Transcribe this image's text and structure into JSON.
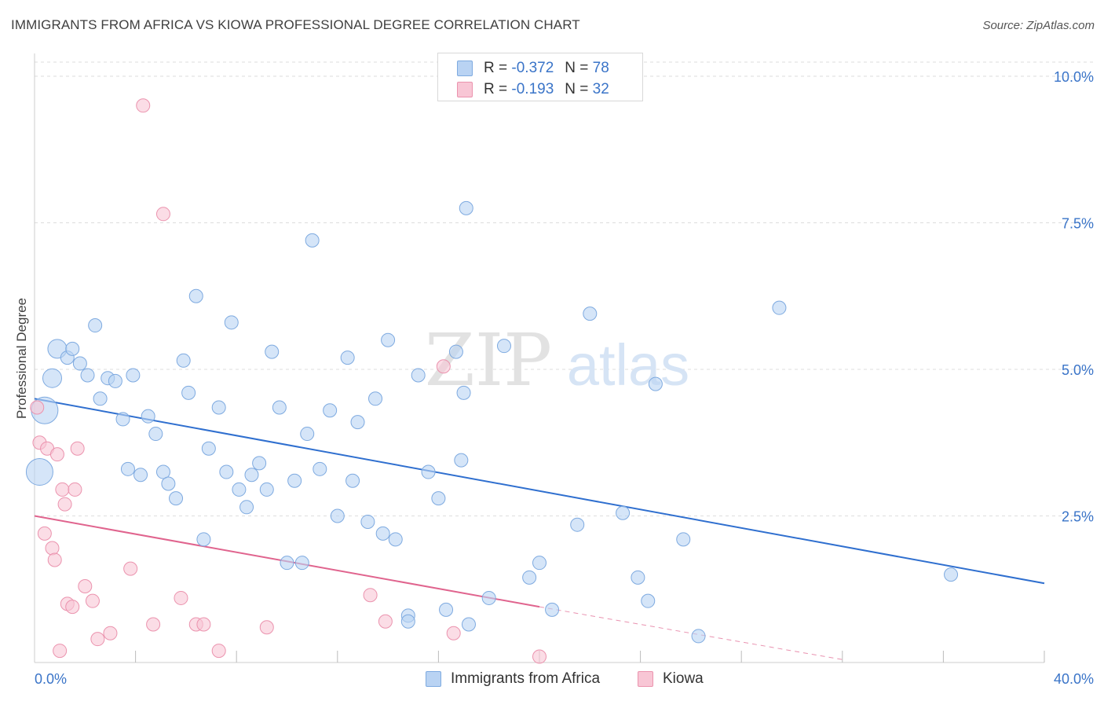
{
  "header": {
    "title": "IMMIGRANTS FROM AFRICA VS KIOWA PROFESSIONAL DEGREE CORRELATION CHART",
    "source": "Source: ZipAtlas.com"
  },
  "legend": {
    "rows": [
      {
        "r_label": "R =",
        "r_value": "-0.372",
        "n_label": "N =",
        "n_value": "78"
      },
      {
        "r_label": "R =",
        "r_value": "-0.193",
        "n_label": "N =",
        "n_value": "32"
      }
    ]
  },
  "bottom_legend": {
    "items": [
      {
        "label": "Immigrants from Africa"
      },
      {
        "label": "Kiowa"
      }
    ]
  },
  "watermark": {
    "zip": "ZIP",
    "atlas": "atlas"
  },
  "colors": {
    "blue_fill": "#b9d3f3",
    "blue_stroke": "#7eaae0",
    "blue_line": "#2f6fcf",
    "pink_fill": "#f8c6d5",
    "pink_stroke": "#eb93ae",
    "pink_line": "#e0648e",
    "tick_text": "#3a74c8",
    "grid": "#dddddd"
  },
  "chart_data": {
    "type": "scatter",
    "title": "IMMIGRANTS FROM AFRICA VS KIOWA PROFESSIONAL DEGREE CORRELATION CHART",
    "xlabel": "",
    "ylabel": "Professional Degree",
    "xlim": [
      0,
      40
    ],
    "ylim": [
      0,
      10.5
    ],
    "x_tick_labels": [
      "0.0%",
      "40.0%"
    ],
    "y_ticks": [
      2.5,
      5.0,
      7.5,
      10.0
    ],
    "y_tick_labels": [
      "2.5%",
      "5.0%",
      "7.5%",
      "10.0%"
    ],
    "grid": true,
    "legend_position": "top-center",
    "series": [
      {
        "name": "Immigrants from Africa",
        "r": -0.372,
        "n": 78,
        "trend": {
          "x": [
            0,
            40
          ],
          "y": [
            4.5,
            1.35
          ]
        },
        "points": [
          [
            0.2,
            3.25,
            3
          ],
          [
            0.4,
            4.3,
            3
          ],
          [
            0.7,
            4.85,
            2
          ],
          [
            0.9,
            5.35,
            2
          ],
          [
            1.3,
            5.2,
            1
          ],
          [
            1.5,
            5.35,
            1
          ],
          [
            1.8,
            5.1,
            1
          ],
          [
            2.1,
            4.9,
            1
          ],
          [
            2.4,
            5.75,
            1
          ],
          [
            2.6,
            4.5,
            1
          ],
          [
            2.9,
            4.85,
            1
          ],
          [
            3.2,
            4.8,
            1
          ],
          [
            3.5,
            4.15,
            1
          ],
          [
            3.7,
            3.3,
            1
          ],
          [
            3.9,
            4.9,
            1
          ],
          [
            4.2,
            3.2,
            1
          ],
          [
            4.5,
            4.2,
            1
          ],
          [
            4.8,
            3.9,
            1
          ],
          [
            5.1,
            3.25,
            1
          ],
          [
            5.3,
            3.05,
            1
          ],
          [
            5.6,
            2.8,
            1
          ],
          [
            5.9,
            5.15,
            1
          ],
          [
            6.1,
            4.6,
            1
          ],
          [
            6.4,
            6.25,
            1
          ],
          [
            6.7,
            2.1,
            1
          ],
          [
            6.9,
            3.65,
            1
          ],
          [
            7.3,
            4.35,
            1
          ],
          [
            7.6,
            3.25,
            1
          ],
          [
            7.8,
            5.8,
            1
          ],
          [
            8.1,
            2.95,
            1
          ],
          [
            8.4,
            2.65,
            1
          ],
          [
            8.6,
            3.2,
            1
          ],
          [
            8.9,
            3.4,
            1
          ],
          [
            9.2,
            2.95,
            1
          ],
          [
            9.4,
            5.3,
            1
          ],
          [
            9.7,
            4.35,
            1
          ],
          [
            10.0,
            1.7,
            1
          ],
          [
            10.3,
            3.1,
            1
          ],
          [
            10.6,
            1.7,
            1
          ],
          [
            10.8,
            3.9,
            1
          ],
          [
            11.0,
            7.2,
            1
          ],
          [
            11.3,
            3.3,
            1
          ],
          [
            11.7,
            4.3,
            1
          ],
          [
            12.0,
            2.5,
            1
          ],
          [
            12.4,
            5.2,
            1
          ],
          [
            12.6,
            3.1,
            1
          ],
          [
            12.8,
            4.1,
            1
          ],
          [
            13.2,
            2.4,
            1
          ],
          [
            13.5,
            4.5,
            1
          ],
          [
            13.8,
            2.2,
            1
          ],
          [
            14.0,
            5.5,
            1
          ],
          [
            14.3,
            2.1,
            1
          ],
          [
            14.8,
            0.8,
            1
          ],
          [
            14.8,
            0.7,
            1
          ],
          [
            15.2,
            4.9,
            1
          ],
          [
            15.6,
            3.25,
            1
          ],
          [
            16.0,
            2.8,
            1
          ],
          [
            16.3,
            0.9,
            1
          ],
          [
            16.7,
            5.3,
            1
          ],
          [
            16.9,
            3.45,
            1
          ],
          [
            17.0,
            4.6,
            1
          ],
          [
            17.1,
            7.75,
            1
          ],
          [
            17.2,
            0.65,
            1
          ],
          [
            18.0,
            1.1,
            1
          ],
          [
            18.6,
            5.4,
            1
          ],
          [
            19.6,
            1.45,
            1
          ],
          [
            20.0,
            1.7,
            1
          ],
          [
            20.5,
            0.9,
            1
          ],
          [
            21.5,
            2.35,
            1
          ],
          [
            22.0,
            5.95,
            1
          ],
          [
            23.3,
            2.55,
            1
          ],
          [
            23.9,
            1.45,
            1
          ],
          [
            24.3,
            1.05,
            1
          ],
          [
            24.6,
            4.75,
            1
          ],
          [
            25.7,
            2.1,
            1
          ],
          [
            26.3,
            0.45,
            1
          ],
          [
            29.5,
            6.05,
            1
          ],
          [
            36.3,
            1.5,
            1
          ]
        ]
      },
      {
        "name": "Kiowa",
        "r": -0.193,
        "n": 32,
        "trend": {
          "x": [
            0,
            20
          ],
          "y": [
            2.5,
            0.95
          ]
        },
        "trend_dashed": {
          "x": [
            20,
            32
          ],
          "y": [
            0.95,
            0.05
          ]
        },
        "points": [
          [
            0.1,
            4.35,
            1
          ],
          [
            0.2,
            3.75,
            1
          ],
          [
            0.4,
            2.2,
            1
          ],
          [
            0.5,
            3.65,
            1
          ],
          [
            0.7,
            1.95,
            1
          ],
          [
            0.8,
            1.75,
            1
          ],
          [
            0.9,
            3.55,
            1
          ],
          [
            1.0,
            0.2,
            1
          ],
          [
            1.1,
            2.95,
            1
          ],
          [
            1.2,
            2.7,
            1
          ],
          [
            1.3,
            1.0,
            1
          ],
          [
            1.5,
            0.95,
            1
          ],
          [
            1.6,
            2.95,
            1
          ],
          [
            1.7,
            3.65,
            1
          ],
          [
            2.0,
            1.3,
            1
          ],
          [
            2.3,
            1.05,
            1
          ],
          [
            2.5,
            0.4,
            1
          ],
          [
            3.0,
            0.5,
            1
          ],
          [
            3.8,
            1.6,
            1
          ],
          [
            4.3,
            9.5,
            1
          ],
          [
            4.7,
            0.65,
            1
          ],
          [
            5.1,
            7.65,
            1
          ],
          [
            5.8,
            1.1,
            1
          ],
          [
            6.4,
            0.65,
            1
          ],
          [
            6.7,
            0.65,
            1
          ],
          [
            7.3,
            0.2,
            1
          ],
          [
            9.2,
            0.6,
            1
          ],
          [
            13.3,
            1.15,
            1
          ],
          [
            13.9,
            0.7,
            1
          ],
          [
            16.2,
            5.05,
            1
          ],
          [
            16.6,
            0.5,
            1
          ],
          [
            20.0,
            0.1,
            1
          ]
        ]
      }
    ]
  }
}
